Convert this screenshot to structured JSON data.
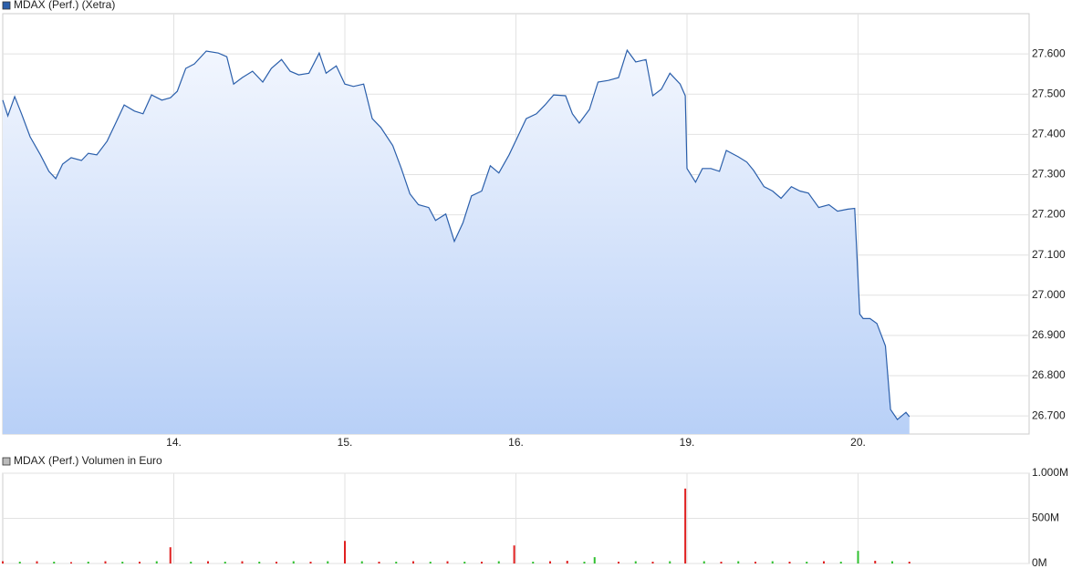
{
  "chart_data": [
    {
      "type": "line",
      "area": true,
      "grid": true,
      "x": [
        0,
        0.03,
        0.07,
        0.11,
        0.16,
        0.22,
        0.27,
        0.31,
        0.35,
        0.4,
        0.46,
        0.5,
        0.55,
        0.61,
        0.66,
        0.71,
        0.77,
        0.82,
        0.87,
        0.93,
        0.98,
        1.02,
        1.07,
        1.12,
        1.19,
        1.26,
        1.31,
        1.35,
        1.4,
        1.46,
        1.52,
        1.57,
        1.63,
        1.68,
        1.73,
        1.79,
        1.85,
        1.89,
        1.95,
        2.0,
        2.05,
        2.11,
        2.16,
        2.21,
        2.28,
        2.33,
        2.38,
        2.43,
        2.49,
        2.53,
        2.59,
        2.64,
        2.69,
        2.74,
        2.8,
        2.85,
        2.9,
        2.96,
        3.01,
        3.06,
        3.12,
        3.17,
        3.22,
        3.29,
        3.33,
        3.37,
        3.43,
        3.48,
        3.54,
        3.6,
        3.65,
        3.7,
        3.76,
        3.8,
        3.85,
        3.9,
        3.96,
        3.99,
        4.0,
        4.05,
        4.09,
        4.14,
        4.19,
        4.23,
        4.3,
        4.35,
        4.39,
        4.45,
        4.5,
        4.55,
        4.61,
        4.66,
        4.71,
        4.77,
        4.83,
        4.88,
        4.94,
        4.98,
        5.01,
        5.03,
        5.07,
        5.11,
        5.16,
        5.19,
        5.23,
        5.28,
        5.3
      ],
      "series": [
        {
          "name": "MDAX (Perf.) (Xetra)",
          "color": "#2b5fab",
          "values": [
            27485,
            27446,
            27494,
            27451,
            27394,
            27349,
            27308,
            27290,
            27326,
            27342,
            27335,
            27353,
            27349,
            27383,
            27428,
            27473,
            27458,
            27451,
            27498,
            27485,
            27491,
            27507,
            27564,
            27575,
            27607,
            27602,
            27593,
            27525,
            27541,
            27557,
            27530,
            27564,
            27586,
            27557,
            27548,
            27552,
            27602,
            27552,
            27570,
            27525,
            27519,
            27525,
            27439,
            27417,
            27372,
            27315,
            27252,
            27225,
            27218,
            27186,
            27202,
            27134,
            27180,
            27247,
            27259,
            27322,
            27304,
            27349,
            27394,
            27439,
            27451,
            27473,
            27498,
            27496,
            27451,
            27428,
            27462,
            27530,
            27534,
            27541,
            27609,
            27580,
            27586,
            27496,
            27512,
            27552,
            27525,
            27496,
            27315,
            27281,
            27315,
            27315,
            27308,
            27360,
            27344,
            27331,
            27310,
            27270,
            27259,
            27241,
            27270,
            27259,
            27254,
            27218,
            27225,
            27209,
            27214,
            27216,
            26953,
            26942,
            26942,
            26930,
            26874,
            26716,
            26691,
            26709,
            26698
          ]
        }
      ],
      "xlim": [
        0,
        6
      ],
      "xticks": [
        {
          "value": 1,
          "label": "14."
        },
        {
          "value": 2,
          "label": "15."
        },
        {
          "value": 3,
          "label": "16."
        },
        {
          "value": 4,
          "label": "19."
        },
        {
          "value": 5,
          "label": "20."
        }
      ],
      "ylim": [
        26655,
        27700
      ],
      "yticks": [
        {
          "value": 26700,
          "label": "26.700"
        },
        {
          "value": 26800,
          "label": "26.800"
        },
        {
          "value": 26900,
          "label": "26.900"
        },
        {
          "value": 27000,
          "label": "27.000"
        },
        {
          "value": 27100,
          "label": "27.100"
        },
        {
          "value": 27200,
          "label": "27.200"
        },
        {
          "value": 27300,
          "label": "27.300"
        },
        {
          "value": 27400,
          "label": "27.400"
        },
        {
          "value": 27500,
          "label": "27.500"
        },
        {
          "value": 27600,
          "label": "27.600"
        }
      ]
    },
    {
      "type": "bar",
      "grid": true,
      "x": [
        0,
        0.1,
        0.2,
        0.3,
        0.4,
        0.5,
        0.6,
        0.7,
        0.8,
        0.9,
        0.98,
        1.1,
        1.2,
        1.3,
        1.4,
        1.5,
        1.6,
        1.7,
        1.8,
        1.9,
        2,
        2.1,
        2.2,
        2.3,
        2.4,
        2.5,
        2.6,
        2.7,
        2.8,
        2.9,
        2.99,
        3.1,
        3.2,
        3.3,
        3.4,
        3.46,
        3.6,
        3.7,
        3.8,
        3.9,
        3.99,
        4.1,
        4.2,
        4.3,
        4.4,
        4.5,
        4.6,
        4.7,
        4.8,
        4.9,
        5,
        5.1,
        5.2,
        5.3
      ],
      "series": [
        {
          "name": "MDAX (Perf.) Volumen in Euro",
          "color": "#bbbbbb",
          "values": [
            25,
            20,
            25,
            20,
            15,
            20,
            25,
            20,
            20,
            25,
            180,
            20,
            25,
            20,
            25,
            20,
            20,
            25,
            20,
            25,
            250,
            25,
            20,
            20,
            25,
            20,
            25,
            20,
            20,
            25,
            200,
            20,
            25,
            30,
            20,
            70,
            20,
            25,
            20,
            25,
            830,
            25,
            20,
            25,
            20,
            25,
            20,
            20,
            25,
            20,
            140,
            30,
            25,
            20
          ],
          "colors": [
            "#e02020",
            "#30c030",
            "#e02020",
            "#30c030",
            "#e02020",
            "#30c030",
            "#e02020",
            "#30c030",
            "#e02020",
            "#30c030",
            "#e02020",
            "#30c030",
            "#e02020",
            "#30c030",
            "#e02020",
            "#30c030",
            "#e02020",
            "#30c030",
            "#e02020",
            "#30c030",
            "#e02020",
            "#30c030",
            "#e02020",
            "#30c030",
            "#e02020",
            "#30c030",
            "#e02020",
            "#30c030",
            "#e02020",
            "#30c030",
            "#e02020",
            "#30c030",
            "#e02020",
            "#e02020",
            "#30c030",
            "#30c030",
            "#e02020",
            "#30c030",
            "#e02020",
            "#30c030",
            "#e02020",
            "#30c030",
            "#e02020",
            "#30c030",
            "#e02020",
            "#30c030",
            "#e02020",
            "#30c030",
            "#e02020",
            "#30c030",
            "#30c030",
            "#e02020",
            "#30c030",
            "#e02020"
          ]
        }
      ],
      "xlim": [
        0,
        6
      ],
      "xticks": [
        1,
        2,
        3,
        4,
        5
      ],
      "ylim": [
        0,
        1000
      ],
      "yticks": [
        {
          "value": 0,
          "label": "0M"
        },
        {
          "value": 500,
          "label": "500M"
        },
        {
          "value": 1000,
          "label": "1.000M"
        }
      ]
    }
  ]
}
